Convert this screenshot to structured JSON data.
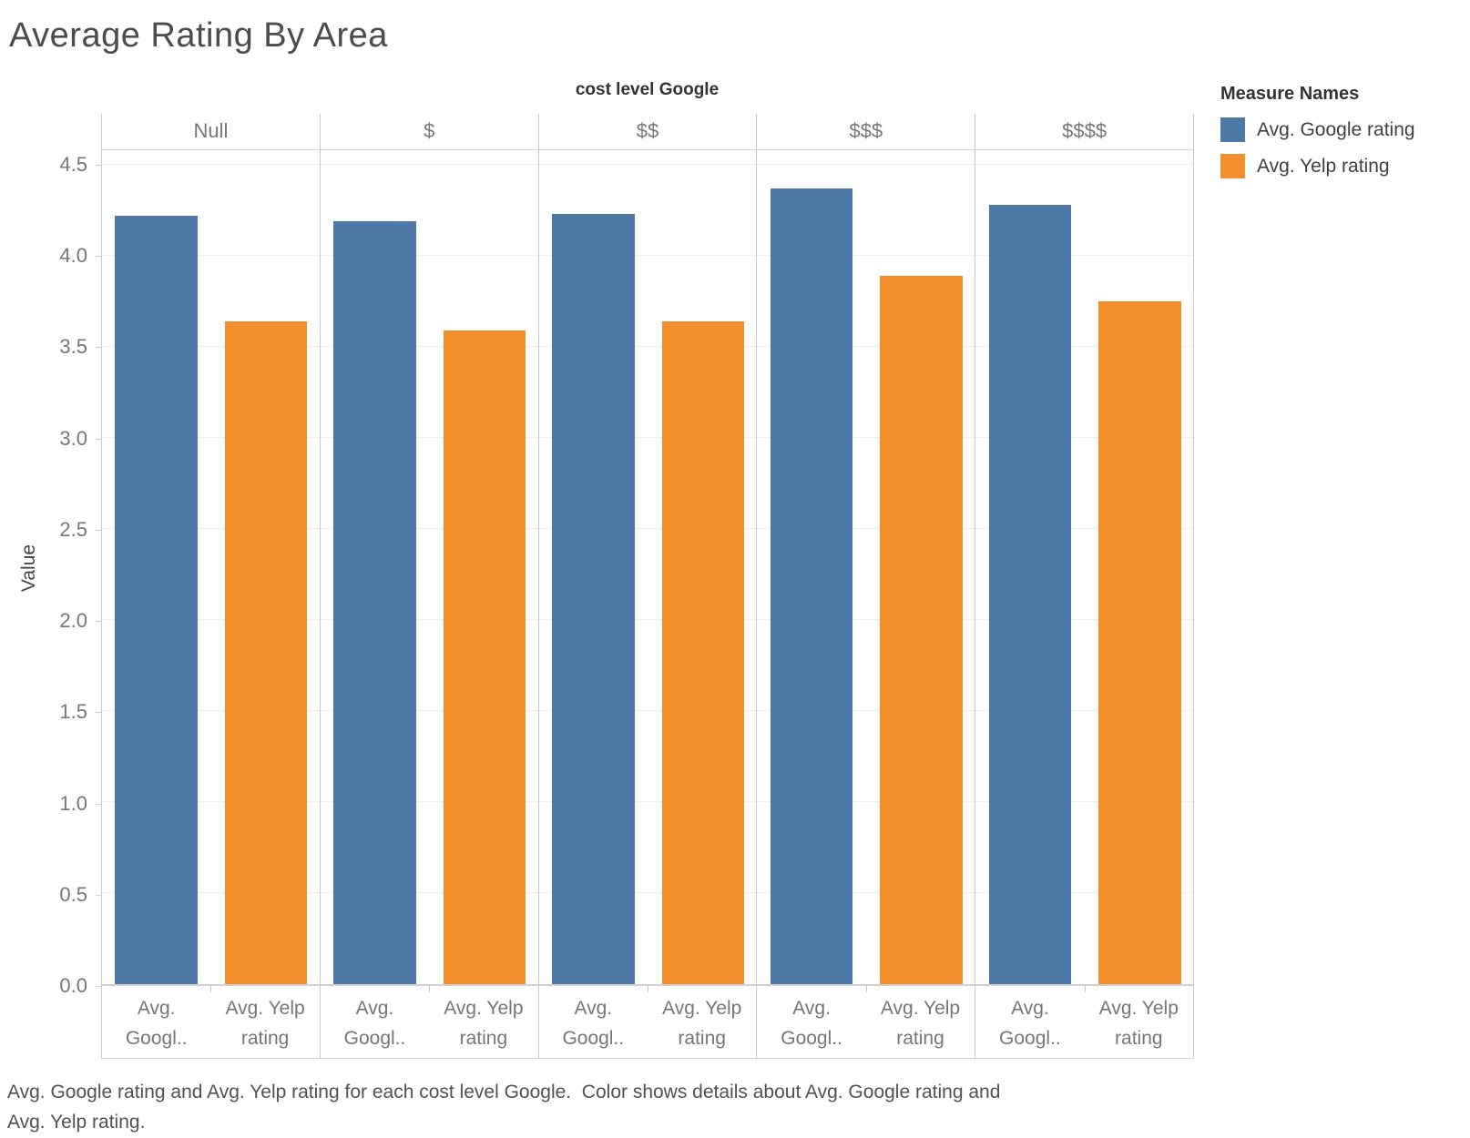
{
  "title": "Average Rating By Area",
  "facet_header": {
    "title": "cost level Google",
    "categories": [
      "Null",
      "$",
      "$$",
      "$$$",
      "$$$$"
    ]
  },
  "legend": {
    "title": "Measure Names",
    "items": [
      {
        "label": "Avg. Google rating",
        "color": "#4e79a7"
      },
      {
        "label": "Avg. Yelp rating",
        "color": "#f28e2b"
      }
    ]
  },
  "y_axis": {
    "label": "Value",
    "tick_labels": [
      "4.5",
      "4.0",
      "3.5",
      "3.0",
      "2.5",
      "2.0",
      "1.5",
      "1.0",
      "0.5",
      "0.0"
    ]
  },
  "x_axis": {
    "measure_labels": [
      "Avg.\nGoogl..",
      "Avg. Yelp\nrating"
    ]
  },
  "caption": "Avg. Google rating and Avg. Yelp rating for each cost level Google.  Color shows details about Avg. Google rating and\nAvg. Yelp rating.",
  "chart_data": {
    "type": "bar",
    "title": "Average Rating By Area",
    "facet_field": "cost level Google",
    "categories": [
      "Null",
      "$",
      "$$",
      "$$$",
      "$$$$"
    ],
    "series": [
      {
        "name": "Avg. Google rating",
        "color": "#4e79a7",
        "values": [
          4.22,
          4.19,
          4.23,
          4.37,
          4.28
        ]
      },
      {
        "name": "Avg. Yelp rating",
        "color": "#f28e2b",
        "values": [
          3.64,
          3.59,
          3.64,
          3.89,
          3.75
        ]
      }
    ],
    "xlabel": "cost level Google",
    "ylabel": "Value",
    "ylim": [
      0,
      4.58
    ],
    "ytick_step": 0.5,
    "grid": true,
    "legend_position": "top-right",
    "legend_title": "Measure Names"
  }
}
